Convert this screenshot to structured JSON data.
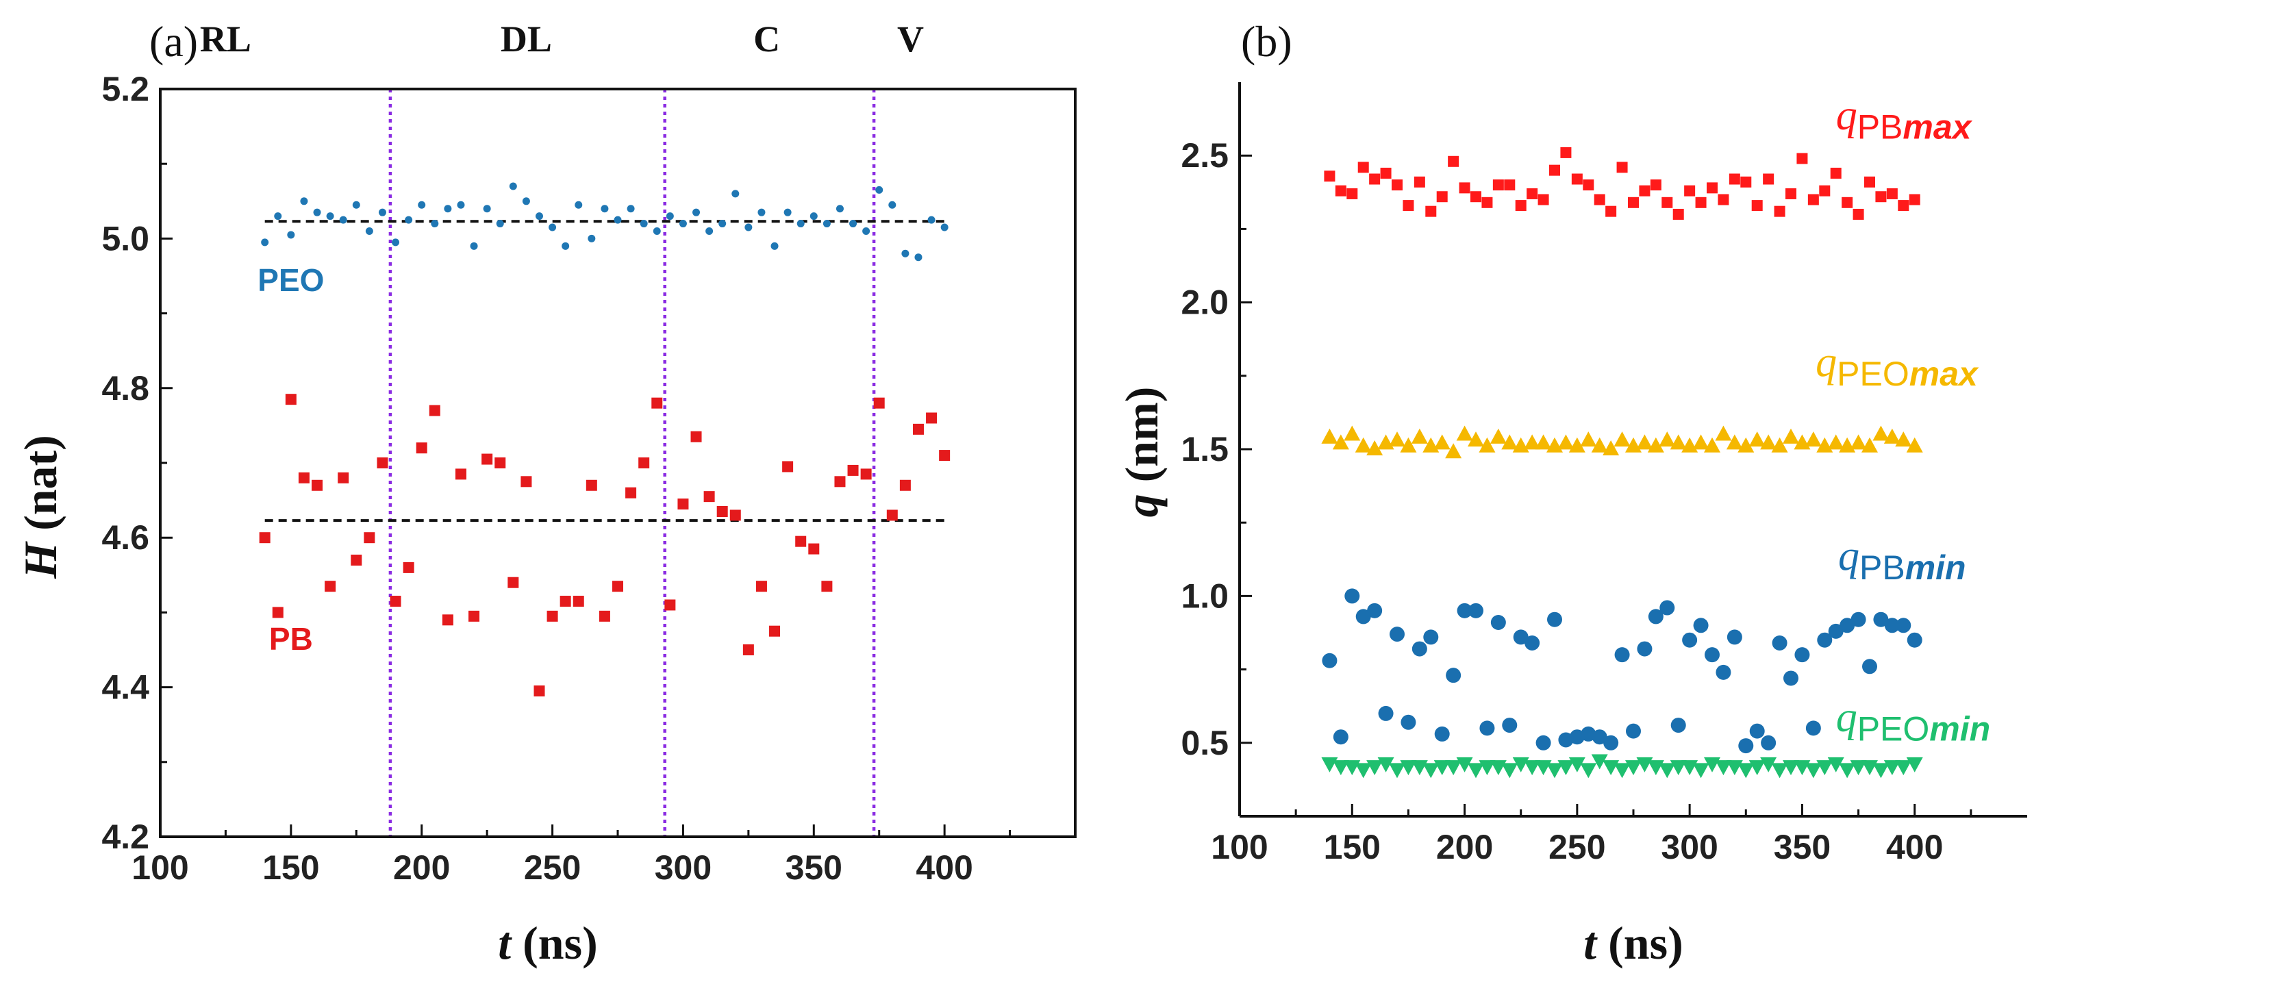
{
  "chart_data": [
    {
      "panel": "(a)",
      "type": "scatter",
      "xlabel_var": "t",
      "xlabel_unit": " (ns)",
      "ylabel_var": "H",
      "ylabel_unit": " (nat)",
      "xlim": [
        100,
        450
      ],
      "ylim": [
        4.2,
        5.2
      ],
      "xticks": [
        100,
        150,
        200,
        250,
        300,
        350,
        400
      ],
      "yticks": [
        4.2,
        4.4,
        4.6,
        4.8,
        5.0,
        5.2
      ],
      "xtick_labels": [
        "100",
        "150",
        "200",
        "250",
        "300",
        "350",
        "400"
      ],
      "ytick_labels": [
        "4.2",
        "4.4",
        "4.6",
        "4.8",
        "5.0",
        "5.2"
      ],
      "regions": [
        {
          "label": "RL",
          "x": 125
        },
        {
          "label": "DL",
          "x": 240
        },
        {
          "label": "C",
          "x": 332
        },
        {
          "label": "V",
          "x": 387
        }
      ],
      "boundaries": [
        188,
        293,
        373
      ],
      "boundary_color": "#8a2be2",
      "series": [
        {
          "name": "PEO",
          "label_color": "#1f77b4",
          "marker": "circle-small",
          "color": "#1f77b4",
          "mean": 5.023,
          "label_pos": [
            150,
            4.93
          ],
          "x": [
            140,
            145,
            150,
            155,
            160,
            165,
            170,
            175,
            180,
            185,
            190,
            195,
            200,
            205,
            210,
            215,
            220,
            225,
            230,
            235,
            240,
            245,
            250,
            255,
            260,
            265,
            270,
            275,
            280,
            285,
            290,
            295,
            300,
            305,
            310,
            315,
            320,
            325,
            330,
            335,
            340,
            345,
            350,
            355,
            360,
            365,
            370,
            375,
            380,
            385,
            390,
            395,
            400
          ],
          "y": [
            4.995,
            5.03,
            5.005,
            5.05,
            5.035,
            5.03,
            5.025,
            5.045,
            5.01,
            5.035,
            4.995,
            5.025,
            5.045,
            5.02,
            5.04,
            5.045,
            4.99,
            5.04,
            5.02,
            5.07,
            5.05,
            5.03,
            5.015,
            4.99,
            5.045,
            5.0,
            5.04,
            5.025,
            5.04,
            5.02,
            5.01,
            5.03,
            5.02,
            5.035,
            5.01,
            5.02,
            5.06,
            5.015,
            5.035,
            4.99,
            5.035,
            5.02,
            5.03,
            5.02,
            5.04,
            5.02,
            5.01,
            5.065,
            5.045,
            4.98,
            4.975,
            5.025,
            5.015
          ]
        },
        {
          "name": "PB",
          "label_color": "#e41a1c",
          "marker": "square",
          "color": "#e41a1c",
          "mean": 4.623,
          "label_pos": [
            150,
            4.45
          ],
          "x": [
            140,
            145,
            150,
            155,
            160,
            165,
            170,
            175,
            180,
            185,
            190,
            195,
            200,
            205,
            210,
            215,
            220,
            225,
            230,
            235,
            240,
            245,
            250,
            255,
            260,
            265,
            270,
            275,
            280,
            285,
            290,
            295,
            300,
            305,
            310,
            315,
            320,
            325,
            330,
            335,
            340,
            345,
            350,
            355,
            360,
            365,
            370,
            375,
            380,
            385,
            390,
            395,
            400
          ],
          "y": [
            4.6,
            4.5,
            4.785,
            4.68,
            4.67,
            4.535,
            4.68,
            4.57,
            4.6,
            4.7,
            4.515,
            4.56,
            4.72,
            4.77,
            4.49,
            4.685,
            4.495,
            4.705,
            4.7,
            4.54,
            4.675,
            4.395,
            4.495,
            4.515,
            4.515,
            4.67,
            4.495,
            4.535,
            4.66,
            4.7,
            4.78,
            4.51,
            4.645,
            4.735,
            4.655,
            4.635,
            4.63,
            4.45,
            4.535,
            4.475,
            4.695,
            4.595,
            4.585,
            4.535,
            4.675,
            4.69,
            4.685,
            4.78,
            4.63,
            4.67,
            4.745,
            4.76,
            4.71
          ]
        }
      ]
    },
    {
      "panel": "(b)",
      "type": "scatter",
      "xlabel_var": "t",
      "xlabel_unit": " (ns)",
      "ylabel_var": "q",
      "ylabel_unit": " (nm)",
      "xlim": [
        100,
        450
      ],
      "ylim": [
        0.25,
        2.75
      ],
      "xticks": [
        100,
        150,
        200,
        250,
        300,
        350,
        400
      ],
      "yticks": [
        0.5,
        1.0,
        1.5,
        2.0,
        2.5
      ],
      "xtick_labels": [
        "100",
        "150",
        "200",
        "250",
        "300",
        "350",
        "400"
      ],
      "ytick_labels": [
        "0.5",
        "1.0",
        "1.5",
        "2.0",
        "2.5"
      ],
      "series": [
        {
          "name": "qPBmax",
          "label_q": "q",
          "label_sub": "PB",
          "label_sub_it": "max",
          "label_color": "#ff1a1a",
          "marker": "square",
          "color": "#ff1a1a",
          "label_pos": [
            365,
            2.59
          ],
          "x": [
            140,
            145,
            150,
            155,
            160,
            165,
            170,
            175,
            180,
            185,
            190,
            195,
            200,
            205,
            210,
            215,
            220,
            225,
            230,
            235,
            240,
            245,
            250,
            255,
            260,
            265,
            270,
            275,
            280,
            285,
            290,
            295,
            300,
            305,
            310,
            315,
            320,
            325,
            330,
            335,
            340,
            345,
            350,
            355,
            360,
            365,
            370,
            375,
            380,
            385,
            390,
            395,
            400
          ],
          "y": [
            2.43,
            2.38,
            2.37,
            2.46,
            2.42,
            2.44,
            2.4,
            2.33,
            2.41,
            2.31,
            2.36,
            2.48,
            2.39,
            2.36,
            2.34,
            2.4,
            2.4,
            2.33,
            2.37,
            2.35,
            2.45,
            2.51,
            2.42,
            2.4,
            2.35,
            2.31,
            2.46,
            2.34,
            2.38,
            2.4,
            2.34,
            2.3,
            2.38,
            2.34,
            2.39,
            2.35,
            2.42,
            2.41,
            2.33,
            2.42,
            2.31,
            2.37,
            2.49,
            2.35,
            2.38,
            2.44,
            2.34,
            2.3,
            2.41,
            2.36,
            2.37,
            2.33,
            2.35
          ]
        },
        {
          "name": "qPEOmax",
          "label_q": "q",
          "label_sub": "PEO",
          "label_sub_it": "max",
          "label_color": "#f5b800",
          "marker": "triangle-up",
          "color": "#f5b800",
          "label_pos": [
            356,
            1.75
          ],
          "x": [
            140,
            145,
            150,
            155,
            160,
            165,
            170,
            175,
            180,
            185,
            190,
            195,
            200,
            205,
            210,
            215,
            220,
            225,
            230,
            235,
            240,
            245,
            250,
            255,
            260,
            265,
            270,
            275,
            280,
            285,
            290,
            295,
            300,
            305,
            310,
            315,
            320,
            325,
            330,
            335,
            340,
            345,
            350,
            355,
            360,
            365,
            370,
            375,
            380,
            385,
            390,
            395,
            400
          ],
          "y": [
            1.54,
            1.52,
            1.55,
            1.51,
            1.5,
            1.52,
            1.53,
            1.51,
            1.54,
            1.51,
            1.52,
            1.49,
            1.55,
            1.53,
            1.51,
            1.54,
            1.52,
            1.51,
            1.52,
            1.52,
            1.51,
            1.52,
            1.51,
            1.53,
            1.51,
            1.5,
            1.53,
            1.51,
            1.52,
            1.51,
            1.53,
            1.52,
            1.51,
            1.52,
            1.51,
            1.55,
            1.52,
            1.51,
            1.53,
            1.52,
            1.51,
            1.54,
            1.52,
            1.53,
            1.51,
            1.52,
            1.51,
            1.52,
            1.51,
            1.55,
            1.54,
            1.53,
            1.51
          ]
        },
        {
          "name": "qPBmin",
          "label_q": "q",
          "label_sub": "PB",
          "label_sub_it": "min",
          "label_color": "#1a6faf",
          "marker": "circle",
          "color": "#1a6faf",
          "label_pos": [
            366,
            1.09
          ],
          "x": [
            140,
            145,
            150,
            155,
            160,
            165,
            170,
            175,
            180,
            185,
            190,
            195,
            200,
            205,
            210,
            215,
            220,
            225,
            230,
            235,
            240,
            245,
            250,
            255,
            260,
            265,
            270,
            275,
            280,
            285,
            290,
            295,
            300,
            305,
            310,
            315,
            320,
            325,
            330,
            335,
            340,
            345,
            350,
            355,
            360,
            365,
            370,
            375,
            380,
            385,
            390,
            395,
            400
          ],
          "y": [
            0.78,
            0.52,
            1.0,
            0.93,
            0.95,
            0.6,
            0.87,
            0.57,
            0.82,
            0.86,
            0.53,
            0.73,
            0.95,
            0.95,
            0.55,
            0.91,
            0.56,
            0.86,
            0.84,
            0.5,
            0.92,
            0.51,
            0.52,
            0.53,
            0.52,
            0.5,
            0.8,
            0.54,
            0.82,
            0.93,
            0.96,
            0.56,
            0.85,
            0.9,
            0.8,
            0.74,
            0.86,
            0.49,
            0.54,
            0.5,
            0.84,
            0.72,
            0.8,
            0.55,
            0.85,
            0.88,
            0.9,
            0.92,
            0.76,
            0.92,
            0.9,
            0.9,
            0.85
          ]
        },
        {
          "name": "qPEOmin",
          "label_q": "q",
          "label_sub": "PEO",
          "label_sub_it": "min",
          "label_color": "#1fbf6f",
          "marker": "triangle-down",
          "color": "#1fbf6f",
          "label_pos": [
            365,
            0.54
          ],
          "x": [
            140,
            145,
            150,
            155,
            160,
            165,
            170,
            175,
            180,
            185,
            190,
            195,
            200,
            205,
            210,
            215,
            220,
            225,
            230,
            235,
            240,
            245,
            250,
            255,
            260,
            265,
            270,
            275,
            280,
            285,
            290,
            295,
            300,
            305,
            310,
            315,
            320,
            325,
            330,
            335,
            340,
            345,
            350,
            355,
            360,
            365,
            370,
            375,
            380,
            385,
            390,
            395,
            400
          ],
          "y": [
            0.43,
            0.42,
            0.42,
            0.41,
            0.42,
            0.43,
            0.41,
            0.42,
            0.42,
            0.41,
            0.42,
            0.42,
            0.43,
            0.41,
            0.42,
            0.42,
            0.41,
            0.43,
            0.42,
            0.42,
            0.41,
            0.42,
            0.43,
            0.41,
            0.44,
            0.42,
            0.41,
            0.42,
            0.43,
            0.42,
            0.41,
            0.42,
            0.42,
            0.41,
            0.43,
            0.42,
            0.42,
            0.41,
            0.42,
            0.43,
            0.41,
            0.42,
            0.42,
            0.41,
            0.42,
            0.43,
            0.41,
            0.42,
            0.42,
            0.41,
            0.42,
            0.42,
            0.43
          ]
        }
      ]
    }
  ]
}
